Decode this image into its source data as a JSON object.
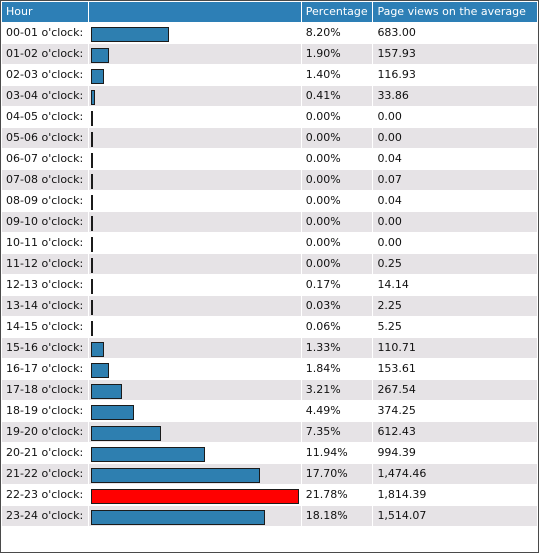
{
  "headers": {
    "hour": "Hour",
    "bar": "",
    "percentage": "Percentage",
    "average": "Page views on the average"
  },
  "colors": {
    "header_bg": "#2d7fb6",
    "bar": "#2e7fb0",
    "bar_max": "#ff0000",
    "row_alt": "#e6e3e6"
  },
  "bar_scale_max_percent": 21.78,
  "rows": [
    {
      "hour": "00-01 o'clock:",
      "percent_value": 8.2,
      "percentage": "8.20%",
      "average": "683.00"
    },
    {
      "hour": "01-02 o'clock:",
      "percent_value": 1.9,
      "percentage": "1.90%",
      "average": "157.93"
    },
    {
      "hour": "02-03 o'clock:",
      "percent_value": 1.4,
      "percentage": "1.40%",
      "average": "116.93"
    },
    {
      "hour": "03-04 o'clock:",
      "percent_value": 0.41,
      "percentage": "0.41%",
      "average": "33.86"
    },
    {
      "hour": "04-05 o'clock:",
      "percent_value": 0.0,
      "percentage": "0.00%",
      "average": "0.00"
    },
    {
      "hour": "05-06 o'clock:",
      "percent_value": 0.0,
      "percentage": "0.00%",
      "average": "0.00"
    },
    {
      "hour": "06-07 o'clock:",
      "percent_value": 0.0,
      "percentage": "0.00%",
      "average": "0.04"
    },
    {
      "hour": "07-08 o'clock:",
      "percent_value": 0.0,
      "percentage": "0.00%",
      "average": "0.07"
    },
    {
      "hour": "08-09 o'clock:",
      "percent_value": 0.0,
      "percentage": "0.00%",
      "average": "0.04"
    },
    {
      "hour": "09-10 o'clock:",
      "percent_value": 0.0,
      "percentage": "0.00%",
      "average": "0.00"
    },
    {
      "hour": "10-11 o'clock:",
      "percent_value": 0.0,
      "percentage": "0.00%",
      "average": "0.00"
    },
    {
      "hour": "11-12 o'clock:",
      "percent_value": 0.0,
      "percentage": "0.00%",
      "average": "0.25"
    },
    {
      "hour": "12-13 o'clock:",
      "percent_value": 0.17,
      "percentage": "0.17%",
      "average": "14.14"
    },
    {
      "hour": "13-14 o'clock:",
      "percent_value": 0.03,
      "percentage": "0.03%",
      "average": "2.25"
    },
    {
      "hour": "14-15 o'clock:",
      "percent_value": 0.06,
      "percentage": "0.06%",
      "average": "5.25"
    },
    {
      "hour": "15-16 o'clock:",
      "percent_value": 1.33,
      "percentage": "1.33%",
      "average": "110.71"
    },
    {
      "hour": "16-17 o'clock:",
      "percent_value": 1.84,
      "percentage": "1.84%",
      "average": "153.61"
    },
    {
      "hour": "17-18 o'clock:",
      "percent_value": 3.21,
      "percentage": "3.21%",
      "average": "267.54"
    },
    {
      "hour": "18-19 o'clock:",
      "percent_value": 4.49,
      "percentage": "4.49%",
      "average": "374.25"
    },
    {
      "hour": "19-20 o'clock:",
      "percent_value": 7.35,
      "percentage": "7.35%",
      "average": "612.43"
    },
    {
      "hour": "20-21 o'clock:",
      "percent_value": 11.94,
      "percentage": "11.94%",
      "average": "994.39"
    },
    {
      "hour": "21-22 o'clock:",
      "percent_value": 17.7,
      "percentage": "17.70%",
      "average": "1,474.46"
    },
    {
      "hour": "22-23 o'clock:",
      "percent_value": 21.78,
      "percentage": "21.78%",
      "average": "1,814.39",
      "is_max": true
    },
    {
      "hour": "23-24 o'clock:",
      "percent_value": 18.18,
      "percentage": "18.18%",
      "average": "1,514.07"
    }
  ]
}
